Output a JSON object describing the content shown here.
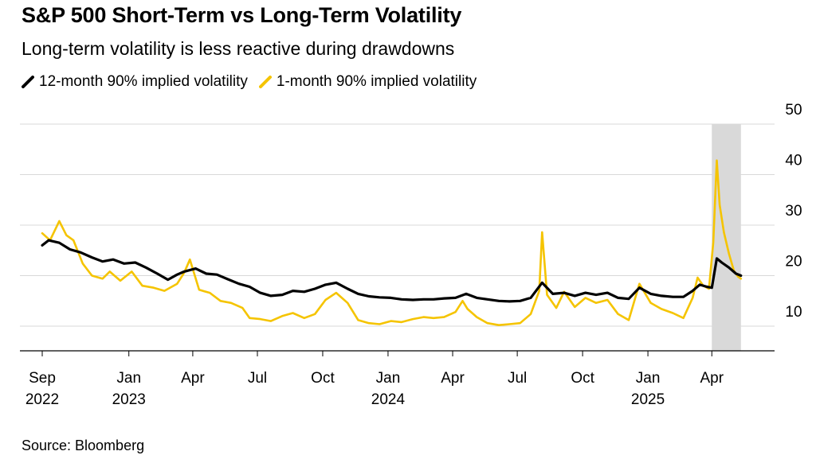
{
  "header": {
    "title": "S&P 500 Short-Term vs Long-Term Volatility",
    "subtitle": "Long-term volatility is less reactive during drawdowns"
  },
  "legend": [
    {
      "label": "12-month 90% implied volatility",
      "color": "#000000"
    },
    {
      "label": "1-month 90% implied volatility",
      "color": "#f5c400"
    }
  ],
  "footer": {
    "source": "Source: Bloomberg"
  },
  "chart_data": {
    "type": "line",
    "title": "S&P 500 Short-Term vs Long-Term Volatility",
    "subtitle": "Long-term volatility is less reactive during drawdowns",
    "xlabel": "",
    "ylabel": "",
    "ylim": [
      5,
      50
    ],
    "xlim": [
      "2022-09-01",
      "2025-06-10"
    ],
    "yticks": [
      10,
      20,
      30,
      40,
      50
    ],
    "y_axis_side": "right",
    "grid": true,
    "legend_placement": "top-left",
    "xticks": [
      {
        "date": "2022-09-01",
        "label": "Sep",
        "year": "2022"
      },
      {
        "date": "2023-01-01",
        "label": "Jan",
        "year": "2023"
      },
      {
        "date": "2023-04-01",
        "label": "Apr",
        "year": ""
      },
      {
        "date": "2023-07-01",
        "label": "Jul",
        "year": ""
      },
      {
        "date": "2023-10-01",
        "label": "Oct",
        "year": ""
      },
      {
        "date": "2024-01-01",
        "label": "Jan",
        "year": "2024"
      },
      {
        "date": "2024-04-01",
        "label": "Apr",
        "year": ""
      },
      {
        "date": "2024-07-01",
        "label": "Jul",
        "year": ""
      },
      {
        "date": "2024-10-01",
        "label": "Oct",
        "year": ""
      },
      {
        "date": "2025-01-01",
        "label": "Jan",
        "year": "2025"
      },
      {
        "date": "2025-04-01",
        "label": "Apr",
        "year": ""
      }
    ],
    "shaded_region": {
      "start": "2025-04-01",
      "end": "2025-05-12",
      "color": "#d9d9d9"
    },
    "series": [
      {
        "name": "12-month 90% implied volatility",
        "color": "#000000",
        "points": [
          [
            "2022-09-01",
            26.0
          ],
          [
            "2022-09-10",
            27.0
          ],
          [
            "2022-09-25",
            26.5
          ],
          [
            "2022-10-10",
            25.2
          ],
          [
            "2022-10-25",
            24.6
          ],
          [
            "2022-11-10",
            23.6
          ],
          [
            "2022-11-25",
            22.8
          ],
          [
            "2022-12-10",
            23.2
          ],
          [
            "2022-12-25",
            22.4
          ],
          [
            "2023-01-10",
            22.6
          ],
          [
            "2023-01-25",
            21.6
          ],
          [
            "2023-02-10",
            20.4
          ],
          [
            "2023-02-25",
            19.2
          ],
          [
            "2023-03-10",
            20.2
          ],
          [
            "2023-03-20",
            20.8
          ],
          [
            "2023-04-05",
            21.4
          ],
          [
            "2023-04-20",
            20.4
          ],
          [
            "2023-05-05",
            20.2
          ],
          [
            "2023-05-20",
            19.3
          ],
          [
            "2023-06-05",
            18.4
          ],
          [
            "2023-06-20",
            17.8
          ],
          [
            "2023-07-05",
            16.6
          ],
          [
            "2023-07-20",
            16.0
          ],
          [
            "2023-08-05",
            16.2
          ],
          [
            "2023-08-20",
            17.0
          ],
          [
            "2023-09-05",
            16.8
          ],
          [
            "2023-09-20",
            17.4
          ],
          [
            "2023-10-05",
            18.2
          ],
          [
            "2023-10-20",
            18.6
          ],
          [
            "2023-11-05",
            17.4
          ],
          [
            "2023-11-20",
            16.4
          ],
          [
            "2023-12-05",
            15.9
          ],
          [
            "2023-12-20",
            15.7
          ],
          [
            "2024-01-05",
            15.6
          ],
          [
            "2024-01-20",
            15.3
          ],
          [
            "2024-02-05",
            15.2
          ],
          [
            "2024-02-20",
            15.3
          ],
          [
            "2024-03-05",
            15.3
          ],
          [
            "2024-03-20",
            15.5
          ],
          [
            "2024-04-05",
            15.6
          ],
          [
            "2024-04-20",
            16.4
          ],
          [
            "2024-05-05",
            15.6
          ],
          [
            "2024-05-20",
            15.3
          ],
          [
            "2024-06-05",
            15.0
          ],
          [
            "2024-06-20",
            14.9
          ],
          [
            "2024-07-05",
            15.0
          ],
          [
            "2024-07-20",
            15.6
          ],
          [
            "2024-08-05",
            18.6
          ],
          [
            "2024-08-20",
            16.4
          ],
          [
            "2024-09-05",
            16.6
          ],
          [
            "2024-09-20",
            16.0
          ],
          [
            "2024-10-05",
            16.6
          ],
          [
            "2024-10-20",
            16.2
          ],
          [
            "2024-11-05",
            16.6
          ],
          [
            "2024-11-20",
            15.6
          ],
          [
            "2024-12-05",
            15.4
          ],
          [
            "2024-12-20",
            17.6
          ],
          [
            "2025-01-05",
            16.4
          ],
          [
            "2025-01-20",
            16.0
          ],
          [
            "2025-02-05",
            15.8
          ],
          [
            "2025-02-20",
            15.8
          ],
          [
            "2025-03-05",
            17.0
          ],
          [
            "2025-03-15",
            18.2
          ],
          [
            "2025-03-25",
            17.8
          ],
          [
            "2025-04-01",
            17.6
          ],
          [
            "2025-04-08",
            23.4
          ],
          [
            "2025-04-15",
            22.6
          ],
          [
            "2025-04-25",
            21.6
          ],
          [
            "2025-05-05",
            20.4
          ],
          [
            "2025-05-12",
            20.0
          ]
        ]
      },
      {
        "name": "1-month 90% implied volatility",
        "color": "#f5c400",
        "points": [
          [
            "2022-09-01",
            28.4
          ],
          [
            "2022-09-12",
            27.0
          ],
          [
            "2022-09-25",
            30.8
          ],
          [
            "2022-10-05",
            28.0
          ],
          [
            "2022-10-15",
            27.0
          ],
          [
            "2022-10-28",
            22.4
          ],
          [
            "2022-11-10",
            20.0
          ],
          [
            "2022-11-25",
            19.4
          ],
          [
            "2022-12-05",
            20.8
          ],
          [
            "2022-12-20",
            19.0
          ],
          [
            "2023-01-05",
            20.8
          ],
          [
            "2023-01-20",
            18.0
          ],
          [
            "2023-02-05",
            17.6
          ],
          [
            "2023-02-20",
            17.0
          ],
          [
            "2023-03-10",
            18.4
          ],
          [
            "2023-03-20",
            20.6
          ],
          [
            "2023-03-28",
            23.2
          ],
          [
            "2023-04-10",
            17.2
          ],
          [
            "2023-04-25",
            16.6
          ],
          [
            "2023-05-10",
            15.0
          ],
          [
            "2023-05-25",
            14.6
          ],
          [
            "2023-06-10",
            13.6
          ],
          [
            "2023-06-20",
            11.6
          ],
          [
            "2023-07-05",
            11.4
          ],
          [
            "2023-07-20",
            11.0
          ],
          [
            "2023-08-05",
            12.0
          ],
          [
            "2023-08-20",
            12.6
          ],
          [
            "2023-09-05",
            11.6
          ],
          [
            "2023-09-20",
            12.4
          ],
          [
            "2023-10-05",
            15.2
          ],
          [
            "2023-10-20",
            16.6
          ],
          [
            "2023-11-05",
            14.6
          ],
          [
            "2023-11-20",
            11.2
          ],
          [
            "2023-12-05",
            10.6
          ],
          [
            "2023-12-20",
            10.4
          ],
          [
            "2024-01-05",
            11.0
          ],
          [
            "2024-01-20",
            10.8
          ],
          [
            "2024-02-05",
            11.4
          ],
          [
            "2024-02-20",
            11.8
          ],
          [
            "2024-03-05",
            11.6
          ],
          [
            "2024-03-20",
            11.8
          ],
          [
            "2024-04-05",
            12.8
          ],
          [
            "2024-04-15",
            15.0
          ],
          [
            "2024-04-22",
            13.4
          ],
          [
            "2024-05-05",
            11.8
          ],
          [
            "2024-05-20",
            10.6
          ],
          [
            "2024-06-05",
            10.2
          ],
          [
            "2024-06-20",
            10.4
          ],
          [
            "2024-07-05",
            10.6
          ],
          [
            "2024-07-20",
            12.4
          ],
          [
            "2024-08-01",
            17.0
          ],
          [
            "2024-08-05",
            28.6
          ],
          [
            "2024-08-12",
            16.2
          ],
          [
            "2024-08-25",
            13.6
          ],
          [
            "2024-09-05",
            16.8
          ],
          [
            "2024-09-20",
            13.8
          ],
          [
            "2024-10-05",
            15.6
          ],
          [
            "2024-10-20",
            14.6
          ],
          [
            "2024-11-05",
            15.2
          ],
          [
            "2024-11-20",
            12.4
          ],
          [
            "2024-12-05",
            11.2
          ],
          [
            "2024-12-20",
            18.4
          ],
          [
            "2025-01-05",
            14.6
          ],
          [
            "2025-01-20",
            13.4
          ],
          [
            "2025-02-05",
            12.6
          ],
          [
            "2025-02-20",
            11.6
          ],
          [
            "2025-03-05",
            15.6
          ],
          [
            "2025-03-12",
            19.6
          ],
          [
            "2025-03-20",
            18.0
          ],
          [
            "2025-03-28",
            17.4
          ],
          [
            "2025-04-03",
            26.6
          ],
          [
            "2025-04-08",
            42.8
          ],
          [
            "2025-04-12",
            34.0
          ],
          [
            "2025-04-18",
            28.6
          ],
          [
            "2025-04-25",
            24.4
          ],
          [
            "2025-05-02",
            21.0
          ],
          [
            "2025-05-08",
            19.8
          ],
          [
            "2025-05-12",
            19.4
          ]
        ]
      }
    ]
  }
}
